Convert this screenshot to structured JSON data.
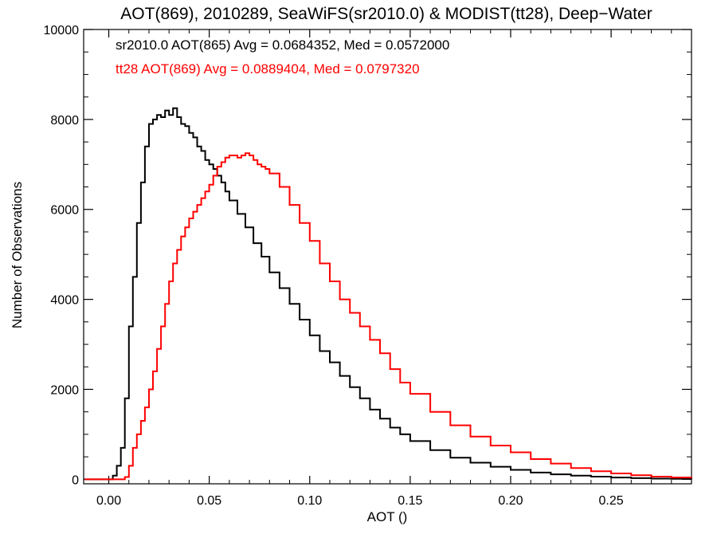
{
  "chart_data": {
    "type": "line",
    "title": "AOT(869), 2010289, SeaWiFS(sr2010.0) & MODIST(tt28), Deep−Water",
    "xlabel": "AOT ()",
    "ylabel": "Number of Observations",
    "xlim": [
      -0.0125,
      0.29
    ],
    "ylim": [
      -100,
      10000
    ],
    "x_ticks": [
      0.0,
      0.05,
      0.1,
      0.15,
      0.2,
      0.25
    ],
    "x_tick_labels": [
      "0.00",
      "0.05",
      "0.10",
      "0.15",
      "0.20",
      "0.25"
    ],
    "y_ticks": [
      0,
      2000,
      4000,
      6000,
      8000,
      10000
    ],
    "y_tick_labels": [
      "0",
      "2000",
      "4000",
      "6000",
      "8000",
      "10000"
    ],
    "step": "histogram",
    "annotations": [
      {
        "text": "sr2010.0 AOT(865) Avg = 0.0684352, Med = 0.0572000",
        "color": "#000000"
      },
      {
        "text": "tt28 AOT(869) Avg = 0.0889404, Med = 0.0797320",
        "color": "#ff0000"
      }
    ],
    "series": [
      {
        "color": "#000000",
        "x": [
          -0.012,
          0.0,
          0.002,
          0.004,
          0.006,
          0.008,
          0.01,
          0.012,
          0.014,
          0.016,
          0.018,
          0.02,
          0.022,
          0.024,
          0.026,
          0.028,
          0.03,
          0.032,
          0.034,
          0.036,
          0.038,
          0.04,
          0.042,
          0.044,
          0.046,
          0.048,
          0.05,
          0.052,
          0.054,
          0.056,
          0.058,
          0.06,
          0.064,
          0.068,
          0.072,
          0.076,
          0.08,
          0.085,
          0.09,
          0.095,
          0.1,
          0.105,
          0.11,
          0.115,
          0.12,
          0.125,
          0.13,
          0.135,
          0.14,
          0.145,
          0.15,
          0.16,
          0.17,
          0.18,
          0.19,
          0.2,
          0.21,
          0.22,
          0.23,
          0.24,
          0.25,
          0.26,
          0.27,
          0.28,
          0.29
        ],
        "y": [
          0,
          0,
          80,
          300,
          700,
          1800,
          3400,
          4500,
          5700,
          6600,
          7400,
          7900,
          8000,
          8100,
          8050,
          8200,
          8100,
          8250,
          8050,
          7900,
          7850,
          7700,
          7600,
          7400,
          7300,
          7100,
          7000,
          6900,
          6750,
          6600,
          6400,
          6200,
          5900,
          5600,
          5250,
          4950,
          4600,
          4250,
          3900,
          3550,
          3200,
          2850,
          2600,
          2300,
          2050,
          1800,
          1550,
          1350,
          1150,
          1000,
          850,
          650,
          480,
          370,
          280,
          210,
          150,
          110,
          80,
          60,
          40,
          25,
          15,
          10,
          5
        ]
      },
      {
        "color": "#ff0000",
        "x": [
          -0.012,
          0.0,
          0.005,
          0.008,
          0.01,
          0.012,
          0.014,
          0.016,
          0.018,
          0.02,
          0.022,
          0.024,
          0.026,
          0.028,
          0.03,
          0.032,
          0.034,
          0.036,
          0.038,
          0.04,
          0.042,
          0.044,
          0.046,
          0.048,
          0.05,
          0.052,
          0.054,
          0.056,
          0.058,
          0.06,
          0.062,
          0.064,
          0.066,
          0.068,
          0.07,
          0.072,
          0.074,
          0.076,
          0.078,
          0.08,
          0.085,
          0.09,
          0.095,
          0.1,
          0.105,
          0.11,
          0.115,
          0.12,
          0.125,
          0.13,
          0.135,
          0.14,
          0.145,
          0.15,
          0.16,
          0.17,
          0.18,
          0.19,
          0.2,
          0.21,
          0.22,
          0.23,
          0.24,
          0.25,
          0.26,
          0.27,
          0.28,
          0.29
        ],
        "y": [
          0,
          0,
          0,
          50,
          300,
          700,
          1000,
          1300,
          1600,
          2000,
          2400,
          2900,
          3400,
          3900,
          4400,
          4800,
          5100,
          5400,
          5600,
          5800,
          5950,
          6100,
          6250,
          6400,
          6550,
          6750,
          6950,
          7050,
          7150,
          7200,
          7200,
          7150,
          7200,
          7250,
          7200,
          7100,
          7000,
          6950,
          6900,
          6800,
          6500,
          6100,
          5700,
          5300,
          4800,
          4400,
          4000,
          3700,
          3400,
          3100,
          2800,
          2450,
          2150,
          1900,
          1500,
          1200,
          950,
          750,
          600,
          450,
          350,
          250,
          180,
          130,
          90,
          60,
          40,
          25
        ]
      }
    ]
  }
}
